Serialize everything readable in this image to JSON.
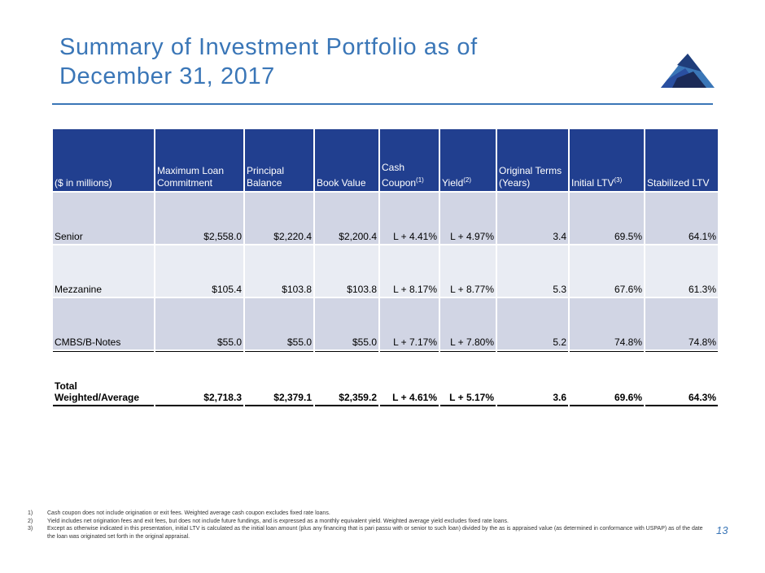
{
  "header": {
    "title_line1": "Summary of Investment Portfolio as of",
    "title_line2": "December 31, 2017"
  },
  "colors": {
    "accent": "#3a76b7",
    "header_fill": "#213f8f",
    "row_fill_dark": "#d1d5e4",
    "row_fill_light": "#e9ecf3"
  },
  "logo": {
    "icon": "mountain-logo-icon"
  },
  "table": {
    "columns": [
      {
        "label": "($ in millions)",
        "sup": ""
      },
      {
        "label": "Maximum Loan Commitment",
        "sup": ""
      },
      {
        "label": "Principal Balance",
        "sup": ""
      },
      {
        "label": "Book Value",
        "sup": ""
      },
      {
        "label": "Cash Coupon",
        "sup": "(1)"
      },
      {
        "label": "Yield",
        "sup": "(2)"
      },
      {
        "label": "Original Terms (Years)",
        "sup": ""
      },
      {
        "label": "Initial LTV",
        "sup": "(3)"
      },
      {
        "label": "Stabilized LTV",
        "sup": ""
      }
    ],
    "rows": [
      [
        "Senior",
        "$2,558.0",
        "$2,220.4",
        "$2,200.4",
        "L + 4.41%",
        "L + 4.97%",
        "3.4",
        "69.5%",
        "64.1%"
      ],
      [
        "Mezzanine",
        "$105.4",
        "$103.8",
        "$103.8",
        "L + 8.17%",
        "L + 8.77%",
        "5.3",
        "67.6%",
        "61.3%"
      ],
      [
        "CMBS/B-Notes",
        "$55.0",
        "$55.0",
        "$55.0",
        "L + 7.17%",
        "L + 7.80%",
        "5.2",
        "74.8%",
        "74.8%"
      ]
    ],
    "total": [
      "Total Weighted/Average",
      "$2,718.3",
      "$2,379.1",
      "$2,359.2",
      "L + 4.61%",
      "L + 5.17%",
      "3.6",
      "69.6%",
      "64.3%"
    ]
  },
  "footnotes": [
    {
      "num": "1)",
      "text": "Cash coupon does not include origination or exit fees. Weighted average cash coupon excludes fixed rate loans."
    },
    {
      "num": "2)",
      "text": "Yield includes net origination fees and exit fees, but does not include future fundings, and is expressed as a monthly equivalent yield.  Weighted average yield excludes fixed rate loans."
    },
    {
      "num": "3)",
      "text": "Except as otherwise indicated in this presentation, initial LTV is calculated as the initial loan amount (plus any financing that is pari passu with or senior to such loan) divided by the as is appraised value (as determined in conformance with USPAP) as of the date the loan was originated set forth in the original appraisal."
    }
  ],
  "page_number": "13"
}
